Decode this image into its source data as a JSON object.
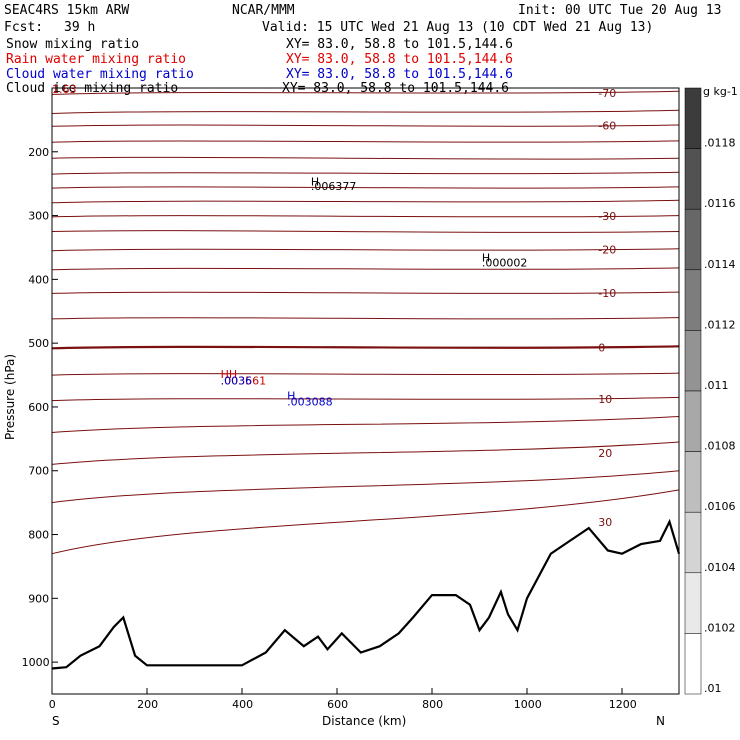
{
  "header": {
    "model": "SEAC4RS 15km ARW",
    "org": "NCAR/MMM",
    "init": "Init: 00 UTC Tue 20 Aug 13",
    "fcst_label": "Fcst:",
    "fcst_value": "39 h",
    "valid": "Valid: 15 UTC Wed 21 Aug 13 (10 CDT Wed 21 Aug 13)"
  },
  "legend": [
    {
      "label": "Snow mixing ratio",
      "xy": "XY=  83.0, 58.8 to 101.5,144.6",
      "color": "#000000"
    },
    {
      "label": "Rain water mixing ratio",
      "xy": "XY=  83.0, 58.8 to 101.5,144.6",
      "color": "#e00000"
    },
    {
      "label": "Cloud water mixing ratio",
      "xy": "XY=  83.0, 58.8 to 101.5,144.6",
      "color": "#0000cc"
    },
    {
      "label": "Cloud ice mixing ratio",
      "xy": "XY=  83.0, 58.8 to 101.5,144.6",
      "color": "#000000"
    }
  ],
  "chart_data": {
    "type": "cross-section",
    "xlabel": "Distance (km)",
    "ylabel": "Pressure (hPa)",
    "xlim": [
      0,
      1320
    ],
    "ylim": [
      1050,
      100
    ],
    "x_ticks": [
      "0",
      "200",
      "400",
      "600",
      "800",
      "1000",
      "1200"
    ],
    "y_ticks": [
      "200",
      "300",
      "400",
      "500",
      "600",
      "700",
      "800",
      "900",
      "1000"
    ],
    "x_endpoints": [
      "S",
      "N"
    ],
    "temperature_contours": [
      {
        "value": -70,
        "label": "-70",
        "pressure_left": 110,
        "pressure_right": 105
      },
      {
        "value": -65,
        "label": "",
        "pressure_left": 140,
        "pressure_right": 135
      },
      {
        "value": -60,
        "label": "-60",
        "pressure_left": 160,
        "pressure_right": 158
      },
      {
        "value": -55,
        "label": "",
        "pressure_left": 185,
        "pressure_right": 183
      },
      {
        "value": -50,
        "label": "",
        "pressure_left": 210,
        "pressure_right": 210
      },
      {
        "value": -45,
        "label": "",
        "pressure_left": 235,
        "pressure_right": 232
      },
      {
        "value": -40,
        "label": "",
        "pressure_left": 257,
        "pressure_right": 255
      },
      {
        "value": -35,
        "label": "",
        "pressure_left": 280,
        "pressure_right": 276
      },
      {
        "value": -30,
        "label": "-30",
        "pressure_left": 302,
        "pressure_right": 300
      },
      {
        "value": -25,
        "label": "",
        "pressure_left": 325,
        "pressure_right": 325
      },
      {
        "value": -20,
        "label": "-20",
        "pressure_left": 355,
        "pressure_right": 352
      },
      {
        "value": -15,
        "label": "",
        "pressure_left": 385,
        "pressure_right": 382
      },
      {
        "value": -10,
        "label": "-10",
        "pressure_left": 422,
        "pressure_right": 420
      },
      {
        "value": -5,
        "label": "",
        "pressure_left": 462,
        "pressure_right": 460
      },
      {
        "value": 0,
        "label": "0",
        "pressure_left": 508,
        "pressure_right": 505
      },
      {
        "value": 5,
        "label": "",
        "pressure_left": 550,
        "pressure_right": 547
      },
      {
        "value": 10,
        "label": "10",
        "pressure_left": 590,
        "pressure_right": 585
      },
      {
        "value": 15,
        "label": "",
        "pressure_left": 640,
        "pressure_right": 615
      },
      {
        "value": 20,
        "label": "20",
        "pressure_left": 690,
        "pressure_right": 655
      },
      {
        "value": 25,
        "label": "",
        "pressure_left": 750,
        "pressure_right": 700
      },
      {
        "value": 30,
        "label": "30",
        "pressure_left": 830,
        "pressure_right": 730
      }
    ],
    "terrain_pressure": [
      [
        0,
        1010
      ],
      [
        30,
        1008
      ],
      [
        60,
        990
      ],
      [
        100,
        975
      ],
      [
        130,
        945
      ],
      [
        150,
        930
      ],
      [
        175,
        990
      ],
      [
        200,
        1005
      ],
      [
        300,
        1005
      ],
      [
        400,
        1005
      ],
      [
        450,
        985
      ],
      [
        490,
        950
      ],
      [
        530,
        975
      ],
      [
        560,
        960
      ],
      [
        580,
        980
      ],
      [
        610,
        955
      ],
      [
        650,
        985
      ],
      [
        690,
        975
      ],
      [
        730,
        955
      ],
      [
        760,
        930
      ],
      [
        800,
        895
      ],
      [
        850,
        895
      ],
      [
        880,
        910
      ],
      [
        900,
        950
      ],
      [
        920,
        930
      ],
      [
        945,
        890
      ],
      [
        960,
        925
      ],
      [
        980,
        950
      ],
      [
        1000,
        900
      ],
      [
        1050,
        830
      ],
      [
        1090,
        810
      ],
      [
        1130,
        790
      ],
      [
        1170,
        825
      ],
      [
        1200,
        830
      ],
      [
        1240,
        815
      ],
      [
        1280,
        810
      ],
      [
        1300,
        780
      ],
      [
        1320,
        830
      ]
    ],
    "annotations": [
      {
        "text": "H",
        "x_km": 545,
        "pressure": 253,
        "color": "#000000"
      },
      {
        "text": ".006377",
        "x_km": 545,
        "pressure": 260,
        "color": "#000000"
      },
      {
        "text": "H",
        "x_km": 905,
        "pressure": 372,
        "color": "#000000"
      },
      {
        "text": ".000002",
        "x_km": 905,
        "pressure": 380,
        "color": "#000000"
      },
      {
        "text": "HH",
        "x_km": 355,
        "pressure": 555,
        "color": "#cc0000"
      },
      {
        "text": ".003561",
        "x_km": 355,
        "pressure": 565,
        "color": "#cc0000"
      },
      {
        "text": ".0036",
        "x_km": 355,
        "pressure": 565,
        "color": "#0000cc"
      },
      {
        "text": "H",
        "x_km": 495,
        "pressure": 588,
        "color": "#0000cc"
      },
      {
        "text": ".003088",
        "x_km": 495,
        "pressure": 598,
        "color": "#0000cc"
      },
      {
        "text": "1.63",
        "x_km": 0,
        "pressure": 108,
        "color": "#cc0000"
      }
    ],
    "colorbar": {
      "unit": "g kg-1",
      "labels": [
        ".0118",
        ".0116",
        ".0114",
        ".0112",
        ".011",
        ".0108",
        ".0106",
        ".0104",
        ".0102",
        ".01"
      ]
    }
  }
}
